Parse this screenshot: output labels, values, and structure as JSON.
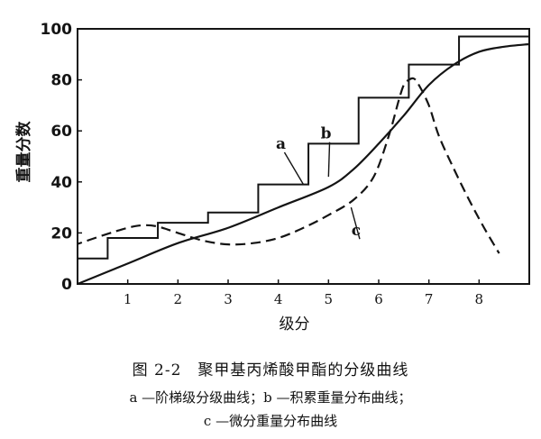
{
  "chart_data": {
    "type": "line",
    "xlabel": "级分",
    "ylabel": "重量分数",
    "xlim": [
      0,
      9
    ],
    "ylim": [
      0,
      100
    ],
    "x_ticks": [
      "1",
      "2",
      "3",
      "4",
      "5",
      "6",
      "7",
      "8"
    ],
    "y_ticks": [
      "0",
      "20",
      "40",
      "60",
      "80",
      "100"
    ],
    "grid": false,
    "annotations": [
      {
        "text": "a",
        "x": 4.5,
        "y": 39,
        "label_x": 4.05,
        "label_y": 53
      },
      {
        "text": "b",
        "x": 5.0,
        "y": 42,
        "label_x": 4.95,
        "label_y": 57
      },
      {
        "text": "c",
        "x": 5.45,
        "y": 30,
        "label_x": 5.55,
        "label_y": 19
      }
    ],
    "series": [
      {
        "key": "a",
        "style": "step",
        "x_edges": [
          0,
          0.6,
          1.6,
          2.6,
          3.6,
          4.6,
          5.6,
          6.6,
          7.6,
          9.0
        ],
        "values": [
          0,
          10,
          18,
          24,
          28,
          39,
          55,
          73,
          86,
          97
        ]
      },
      {
        "key": "b",
        "style": "solid",
        "x": [
          0,
          1,
          2,
          3,
          4,
          5,
          5.5,
          6,
          6.5,
          7,
          7.5,
          8,
          8.5,
          9
        ],
        "y": [
          0,
          8,
          16,
          22,
          30,
          38,
          45,
          55,
          66,
          78,
          86,
          91,
          93,
          94
        ]
      },
      {
        "key": "c",
        "style": "dashed",
        "x": [
          -0.1,
          0.5,
          1,
          1.3,
          1.6,
          2,
          2.5,
          3,
          3.5,
          4,
          4.5,
          5,
          5.5,
          5.9,
          6.2,
          6.4,
          6.5,
          6.6,
          6.7,
          6.8,
          7.0,
          7.2,
          7.5,
          7.8,
          8.1,
          8.4
        ],
        "y": [
          15,
          19,
          22,
          23,
          22.5,
          20,
          17,
          15.5,
          16,
          18,
          22,
          27,
          33,
          42,
          58,
          72,
          78,
          80,
          80.5,
          78,
          70,
          58,
          45,
          33,
          22,
          12
        ]
      }
    ]
  },
  "caption": {
    "title": "图 2-2　聚甲基丙烯酸甲酯的分级曲线",
    "line1": "a —阶梯级分级曲线；b —积累重量分布曲线；",
    "line2": "c —微分重量分布曲线"
  }
}
